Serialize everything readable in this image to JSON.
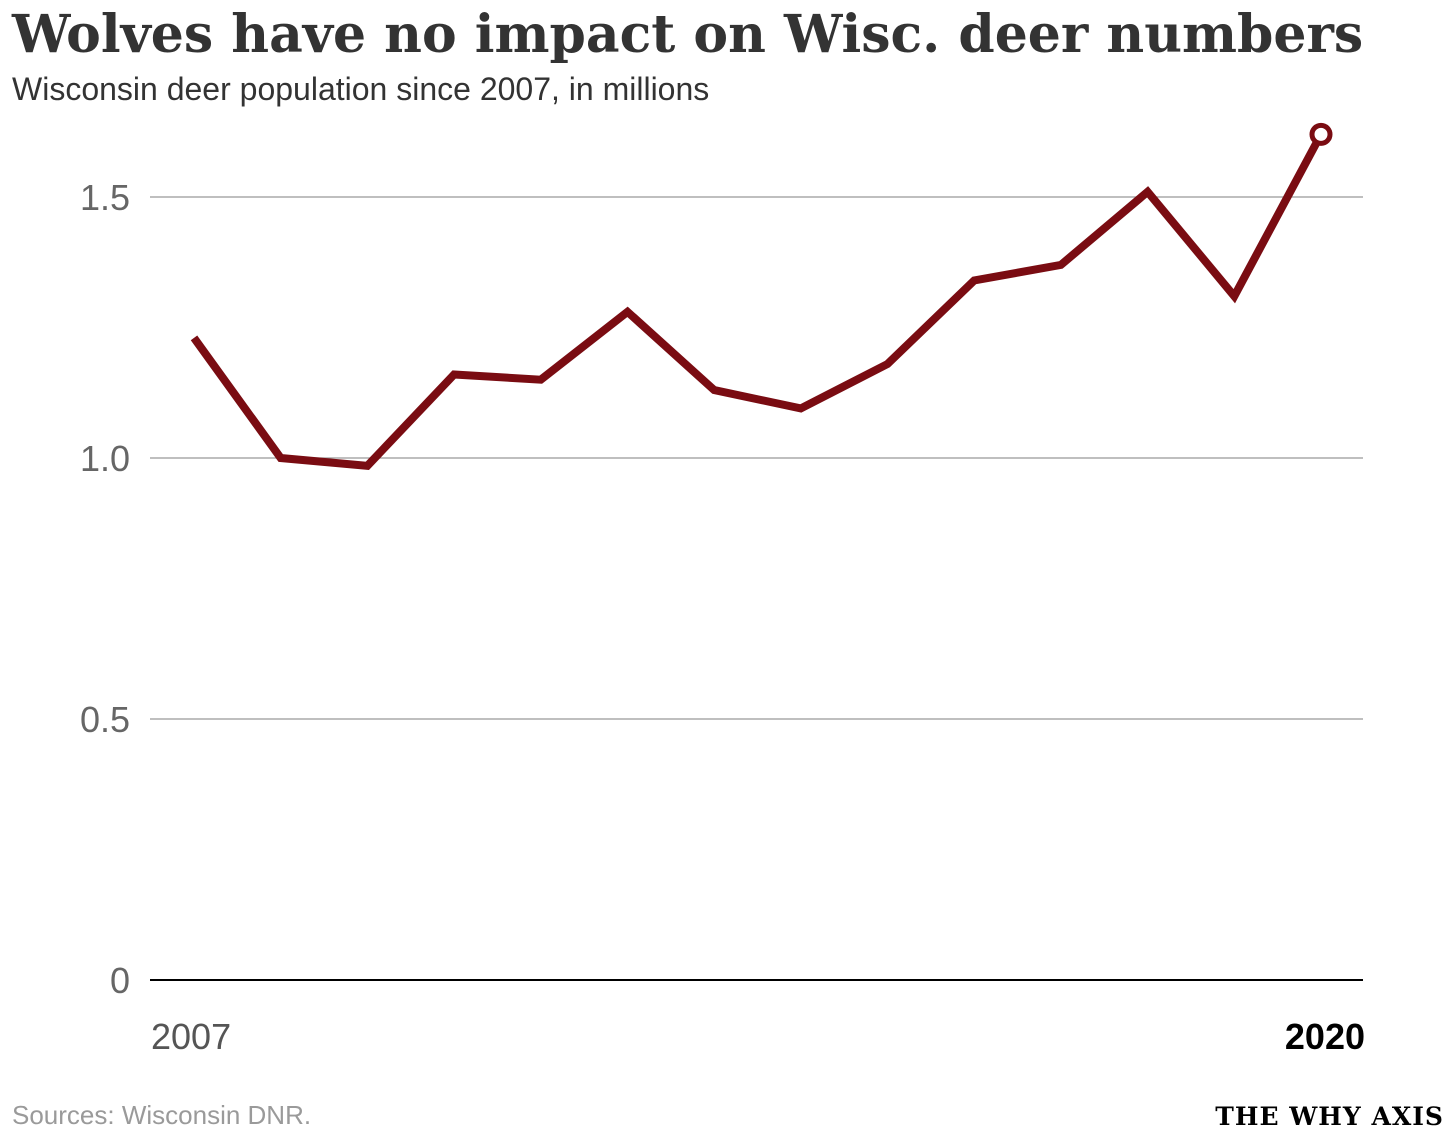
{
  "header": {
    "title": "Wolves have no impact on Wisc. deer numbers",
    "subtitle": "Wisconsin deer population since 2007, in millions"
  },
  "footer": {
    "source": "Sources: Wisconsin DNR.",
    "brand": "THE WHY AXIS"
  },
  "colors": {
    "line": "#7a0c12",
    "grid": "#999999",
    "baseline": "#000000"
  },
  "chart_data": {
    "type": "line",
    "title": "Wolves have no impact on Wisc. deer numbers",
    "subtitle": "Wisconsin deer population since 2007, in millions",
    "xlabel": "",
    "ylabel": "",
    "x": [
      2007,
      2008,
      2009,
      2010,
      2011,
      2012,
      2013,
      2014,
      2015,
      2016,
      2017,
      2018,
      2019,
      2020
    ],
    "x_tick_labels": [
      "2007",
      "2020"
    ],
    "y_ticks": [
      0,
      0.5,
      1.0,
      1.5
    ],
    "y_tick_labels": [
      "0",
      "0.5",
      "1.0",
      "1.5"
    ],
    "ylim": [
      0,
      1.62
    ],
    "grid": true,
    "series": [
      {
        "values": [
          1.23,
          1.0,
          0.985,
          1.16,
          1.15,
          1.28,
          1.13,
          1.095,
          1.18,
          1.34,
          1.37,
          1.51,
          1.31,
          1.62
        ]
      }
    ],
    "highlight": {
      "x": 2020,
      "marker": "open-circle"
    }
  }
}
